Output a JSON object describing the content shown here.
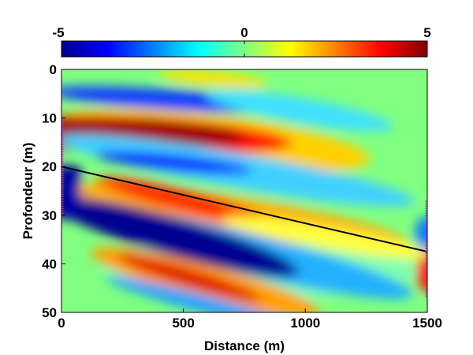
{
  "chart_data": {
    "type": "heatmap",
    "title": "",
    "xlabel": "Distance (m)",
    "ylabel": "Profondeur (m)",
    "xlim": [
      0,
      1500
    ],
    "ylim": [
      0,
      50
    ],
    "y_reversed": true,
    "x_ticks": [
      0,
      500,
      1000,
      1500
    ],
    "y_ticks": [
      0,
      10,
      20,
      30,
      40,
      50
    ],
    "colorbar": {
      "colormap": "jet",
      "min": -5,
      "max": 5,
      "ticks": [
        -5,
        0,
        5
      ],
      "tick_labels": [
        "-5",
        "0",
        "5"
      ]
    },
    "line": {
      "color": "#000000",
      "x": [
        0,
        1500
      ],
      "y": [
        20,
        37.5
      ]
    },
    "left_receivers": {
      "color": "#cc33cc",
      "x": 0,
      "y_range": [
        10,
        30
      ]
    },
    "right_receivers": {
      "color": "#cc33cc",
      "x": 1500,
      "y_range": [
        27,
        47
      ]
    },
    "background_value": 0
  }
}
